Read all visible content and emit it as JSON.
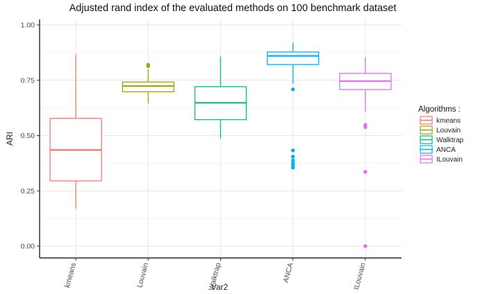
{
  "chart_data": {
    "type": "boxplot",
    "title": "Adjusted rand index of the evaluated methods on 100 benchmark dataset",
    "xlabel": "Var2",
    "ylabel": "ARI",
    "ylim": [
      0,
      1
    ],
    "yticks": [
      "0.00",
      "0.25",
      "0.50",
      "0.75",
      "1.00"
    ],
    "ytick_values": [
      0,
      0.25,
      0.5,
      0.75,
      1.0
    ],
    "grid": true,
    "legend": {
      "title": "Algorithms :",
      "position": "right"
    },
    "categories": [
      "kmeans",
      "Louvain",
      "Walktrap",
      "ANCA",
      "ILouvain"
    ],
    "series": [
      {
        "name": "kmeans",
        "color": "#F8766D",
        "min": 0.17,
        "q1": 0.295,
        "median": 0.435,
        "q3": 0.578,
        "max": 0.868,
        "outliers": []
      },
      {
        "name": "Louvain",
        "color": "#A3A500",
        "min": 0.645,
        "q1": 0.698,
        "median": 0.724,
        "q3": 0.742,
        "max": 0.8,
        "outliers": [
          0.814,
          0.818,
          0.82
        ]
      },
      {
        "name": "Walktrap",
        "color": "#00BF7D",
        "min": 0.487,
        "q1": 0.572,
        "median": 0.648,
        "q3": 0.721,
        "max": 0.857,
        "outliers": []
      },
      {
        "name": "ANCA",
        "color": "#00B0F6",
        "min": 0.735,
        "q1": 0.821,
        "median": 0.86,
        "q3": 0.878,
        "max": 0.92,
        "outliers": [
          0.709,
          0.433,
          0.405,
          0.388,
          0.375,
          0.365,
          0.355
        ]
      },
      {
        "name": "ILouvain",
        "color": "#E76BF3",
        "min": 0.607,
        "q1": 0.708,
        "median": 0.746,
        "q3": 0.781,
        "max": 0.855,
        "outliers": [
          0.548,
          0.538,
          0.336,
          0.0
        ]
      }
    ]
  }
}
